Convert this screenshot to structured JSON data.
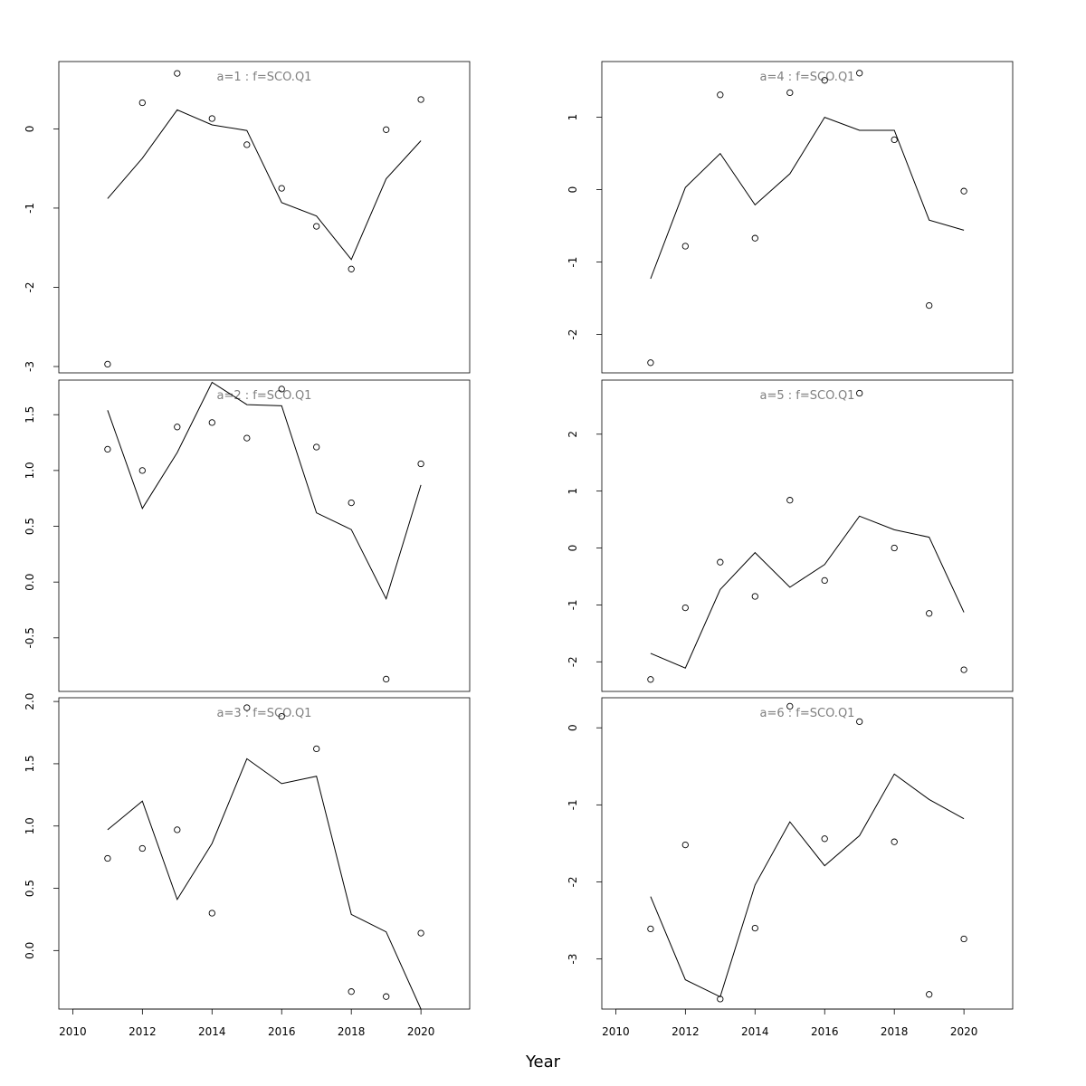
{
  "figure": {
    "xlabel": "Year"
  },
  "chart_data": [
    {
      "type": "line",
      "title": "a=1 : f=SCO.Q1",
      "x": [
        2011,
        2012,
        2013,
        2014,
        2015,
        2016,
        2017,
        2018,
        2019,
        2020
      ],
      "series": [
        {
          "kind": "fitted-line",
          "values": [
            -0.88,
            -0.37,
            0.24,
            0.05,
            -0.02,
            -0.93,
            -1.1,
            -1.65,
            -0.63,
            -0.15
          ]
        },
        {
          "kind": "observed-points",
          "values": [
            -2.97,
            0.33,
            0.7,
            0.13,
            -0.2,
            -0.75,
            -1.23,
            -1.77,
            -0.01,
            0.37
          ]
        }
      ],
      "ylim": [
        -3.08,
        0.85
      ],
      "yticks": [
        -3,
        -2,
        -1,
        0
      ],
      "ytick_labels": [
        "-3",
        "-2",
        "-1",
        "0"
      ],
      "xticks": [],
      "xtick_labels": []
    },
    {
      "type": "line",
      "title": "a=4 : f=SCO.Q1",
      "x": [
        2011,
        2012,
        2013,
        2014,
        2015,
        2016,
        2017,
        2018,
        2019,
        2020
      ],
      "series": [
        {
          "kind": "fitted-line",
          "values": [
            -1.23,
            0.03,
            0.5,
            -0.21,
            0.22,
            1.0,
            0.82,
            0.82,
            -0.42,
            -0.56
          ]
        },
        {
          "kind": "observed-points",
          "values": [
            -2.39,
            -0.78,
            1.31,
            -0.67,
            1.34,
            1.51,
            1.61,
            0.69,
            -1.6,
            -0.02
          ]
        }
      ],
      "ylim": [
        -2.53,
        1.77
      ],
      "yticks": [
        -2,
        -1,
        0,
        1
      ],
      "ytick_labels": [
        "-2",
        "-1",
        "0",
        "1"
      ],
      "xticks": [],
      "xtick_labels": []
    },
    {
      "type": "line",
      "title": "a=2 : f=SCO.Q1",
      "x": [
        2011,
        2012,
        2013,
        2014,
        2015,
        2016,
        2017,
        2018,
        2019,
        2020
      ],
      "series": [
        {
          "kind": "fitted-line",
          "values": [
            1.54,
            0.66,
            1.16,
            1.79,
            1.59,
            1.58,
            0.62,
            0.47,
            -0.15,
            0.87
          ]
        },
        {
          "kind": "observed-points",
          "values": [
            1.19,
            1.0,
            1.39,
            1.43,
            1.29,
            1.73,
            1.21,
            0.71,
            -0.87,
            1.06
          ]
        }
      ],
      "ylim": [
        -0.98,
        1.81
      ],
      "yticks": [
        -0.5,
        0.0,
        0.5,
        1.0,
        1.5
      ],
      "ytick_labels": [
        "-0.5",
        "0.0",
        "0.5",
        "1.0",
        "1.5"
      ],
      "xticks": [],
      "xtick_labels": []
    },
    {
      "type": "line",
      "title": "a=5 : f=SCO.Q1",
      "x": [
        2011,
        2012,
        2013,
        2014,
        2015,
        2016,
        2017,
        2018,
        2019,
        2020
      ],
      "series": [
        {
          "kind": "fitted-line",
          "values": [
            -1.85,
            -2.11,
            -0.73,
            -0.08,
            -0.69,
            -0.29,
            0.56,
            0.32,
            0.19,
            -1.13
          ]
        },
        {
          "kind": "observed-points",
          "values": [
            -2.31,
            -1.05,
            -0.25,
            -0.85,
            0.84,
            -0.57,
            2.72,
            0.0,
            -1.15,
            -2.14
          ]
        }
      ],
      "ylim": [
        -2.52,
        2.95
      ],
      "yticks": [
        -2,
        -1,
        0,
        1,
        2
      ],
      "ytick_labels": [
        "-2",
        "-1",
        "0",
        "1",
        "2"
      ],
      "xticks": [],
      "xtick_labels": []
    },
    {
      "type": "line",
      "title": "a=3 : f=SCO.Q1",
      "x": [
        2011,
        2012,
        2013,
        2014,
        2015,
        2016,
        2017,
        2018,
        2019,
        2020
      ],
      "series": [
        {
          "kind": "fitted-line",
          "values": [
            0.97,
            1.2,
            0.41,
            0.86,
            1.54,
            1.34,
            1.4,
            0.29,
            0.15,
            -0.47
          ]
        },
        {
          "kind": "observed-points",
          "values": [
            0.74,
            0.82,
            0.97,
            0.3,
            1.95,
            1.88,
            1.62,
            -0.33,
            -0.37,
            0.14
          ]
        }
      ],
      "ylim": [
        -0.47,
        2.03
      ],
      "yticks": [
        0.0,
        0.5,
        1.0,
        1.5,
        2.0
      ],
      "ytick_labels": [
        "0.0",
        "0.5",
        "1.0",
        "1.5",
        "2.0"
      ],
      "xticks": [
        2010,
        2012,
        2014,
        2016,
        2018,
        2020
      ],
      "xtick_labels": [
        "2010",
        "2012",
        "2014",
        "2016",
        "2018",
        "2020"
      ]
    },
    {
      "type": "line",
      "title": "a=6 : f=SCO.Q1",
      "x": [
        2011,
        2012,
        2013,
        2014,
        2015,
        2016,
        2017,
        2018,
        2019,
        2020
      ],
      "series": [
        {
          "kind": "fitted-line",
          "values": [
            -2.19,
            -3.27,
            -3.49,
            -2.04,
            -1.22,
            -1.79,
            -1.4,
            -0.6,
            -0.93,
            -1.18
          ]
        },
        {
          "kind": "observed-points",
          "values": [
            -2.61,
            -1.52,
            -3.52,
            -2.6,
            0.28,
            -1.44,
            0.08,
            -1.48,
            -3.46,
            -2.74
          ]
        }
      ],
      "ylim": [
        -3.65,
        0.39
      ],
      "yticks": [
        -3,
        -2,
        -1,
        0
      ],
      "ytick_labels": [
        "-3",
        "-2",
        "-1",
        "0"
      ],
      "xticks": [
        2010,
        2012,
        2014,
        2016,
        2018,
        2020
      ],
      "xtick_labels": [
        "2010",
        "2012",
        "2014",
        "2016",
        "2018",
        "2020"
      ]
    }
  ]
}
